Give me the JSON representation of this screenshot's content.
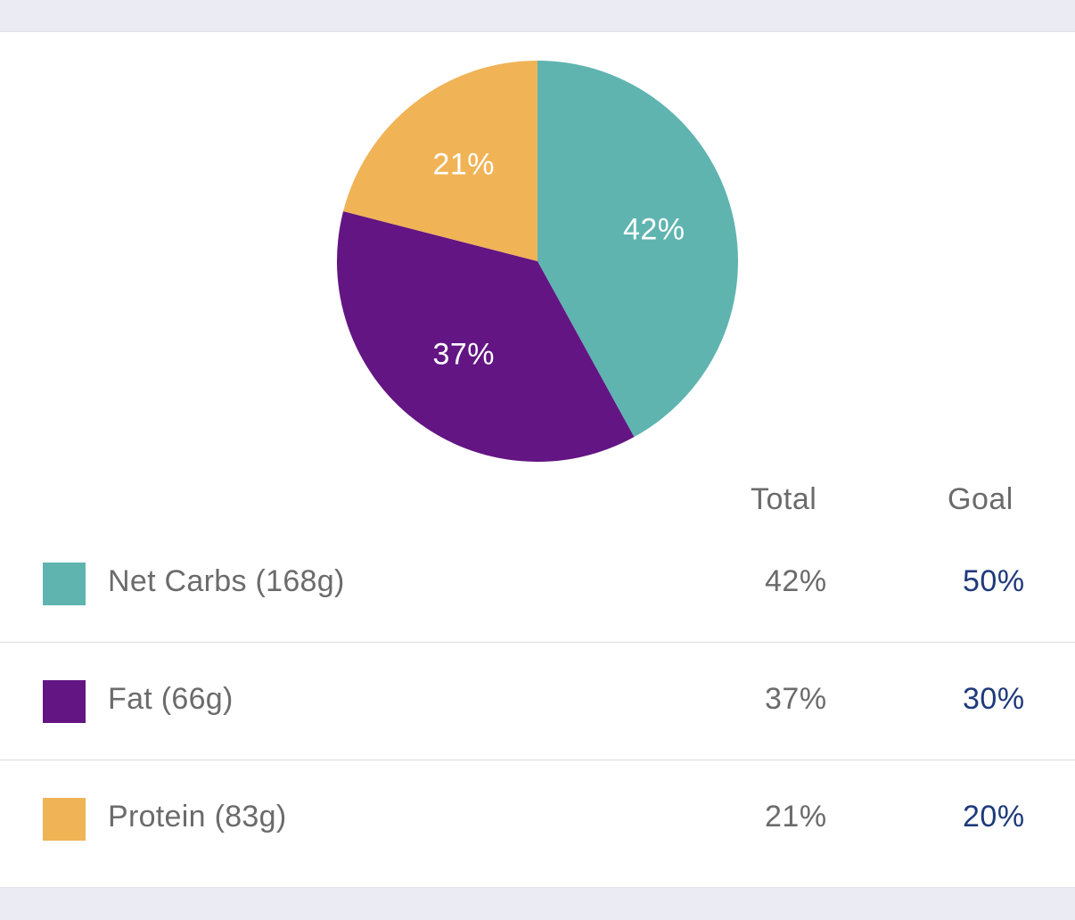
{
  "chart_data": {
    "type": "pie",
    "slices": [
      {
        "label": "Net Carbs (168g)",
        "value": 42,
        "data_label": "42%",
        "color": "#5fb4b0"
      },
      {
        "label": "Fat (66g)",
        "value": 37,
        "data_label": "37%",
        "color": "#631583"
      },
      {
        "label": "Protein (83g)",
        "value": 21,
        "data_label": "21%",
        "color": "#f0b356"
      }
    ]
  },
  "table": {
    "headers": {
      "total": "Total",
      "goal": "Goal"
    },
    "rows": [
      {
        "label": "Net Carbs (168g)",
        "total": "42%",
        "goal": "50%",
        "color": "#5fb4b0"
      },
      {
        "label": "Fat (66g)",
        "total": "37%",
        "goal": "30%",
        "color": "#631583"
      },
      {
        "label": "Protein (83g)",
        "total": "21%",
        "goal": "20%",
        "color": "#f0b356"
      }
    ]
  },
  "colors": {
    "background": "#ebebf3",
    "card": "#ffffff",
    "text_gray": "#6b6b6b",
    "goal_blue": "#1e3a7a"
  }
}
